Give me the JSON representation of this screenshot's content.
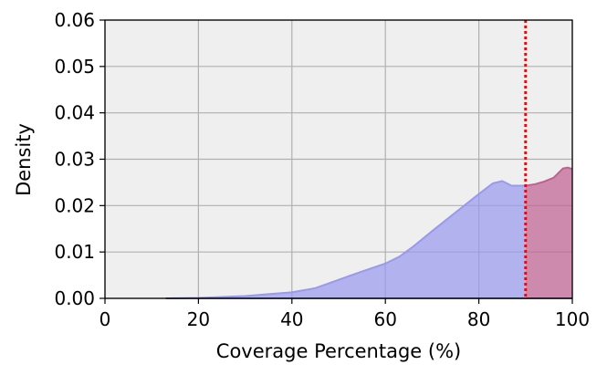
{
  "chart_data": {
    "type": "area",
    "xlabel": "Coverage Percentage (%)",
    "ylabel": "Density",
    "xlim": [
      0,
      100
    ],
    "ylim": [
      0,
      0.06
    ],
    "x_ticks": [
      "0",
      "20",
      "40",
      "60",
      "80",
      "100"
    ],
    "y_ticks": [
      "0.00",
      "0.01",
      "0.02",
      "0.03",
      "0.04",
      "0.05",
      "0.06"
    ],
    "grid": true,
    "background_color": "#efefef",
    "threshold": {
      "x": 90,
      "color": "#ff0000",
      "style": "dotted"
    },
    "series": [
      {
        "color": "#9999ee",
        "x": [
          13,
          20,
          25,
          30,
          35,
          40,
          45,
          50,
          55,
          60,
          63,
          66,
          70,
          75,
          80,
          83,
          85,
          87,
          90
        ],
        "y": [
          0.0,
          0.0001,
          0.0003,
          0.0005,
          0.0009,
          0.0013,
          0.0022,
          0.004,
          0.0058,
          0.0075,
          0.009,
          0.0112,
          0.0145,
          0.0185,
          0.0225,
          0.0248,
          0.0253,
          0.0243,
          0.0243
        ]
      },
      {
        "color": "#c06090",
        "x": [
          90,
          92,
          94,
          96,
          98,
          99,
          100
        ],
        "y": [
          0.0243,
          0.0246,
          0.0252,
          0.026,
          0.028,
          0.0282,
          0.0279
        ]
      }
    ]
  }
}
